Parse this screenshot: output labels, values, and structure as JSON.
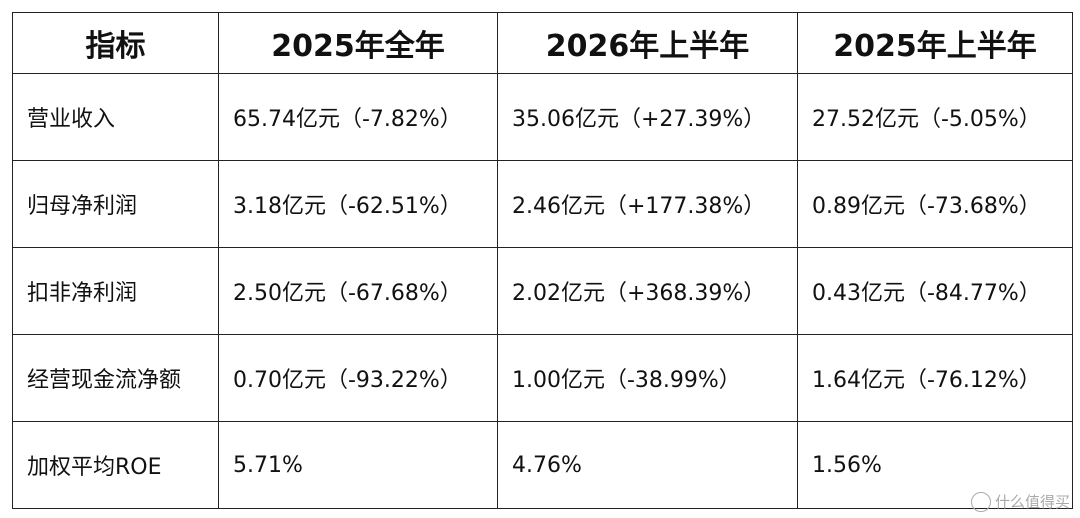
{
  "table": {
    "header": [
      "指标",
      "2025年全年",
      "2026年上半年",
      "2025年上半年"
    ],
    "rows": [
      [
        "营业收入",
        "65.74亿元（-7.82%）",
        "35.06亿元（+27.39%）",
        "27.52亿元（-5.05%）"
      ],
      [
        "归母净利润",
        "3.18亿元（-62.51%）",
        "2.46亿元（+177.38%）",
        "0.89亿元（-73.68%）"
      ],
      [
        "扣非净利润",
        "2.50亿元（-67.68%）",
        "2.02亿元（+368.39%）",
        "0.43亿元（-84.77%）"
      ],
      [
        "经营现金流净额",
        "0.70亿元（-93.22%）",
        "1.00亿元（-38.99%）",
        "1.64亿元（-76.12%）"
      ],
      [
        "加权平均ROE",
        "5.71%",
        "4.76%",
        "1.56%"
      ]
    ]
  },
  "watermark": "什么值得买"
}
